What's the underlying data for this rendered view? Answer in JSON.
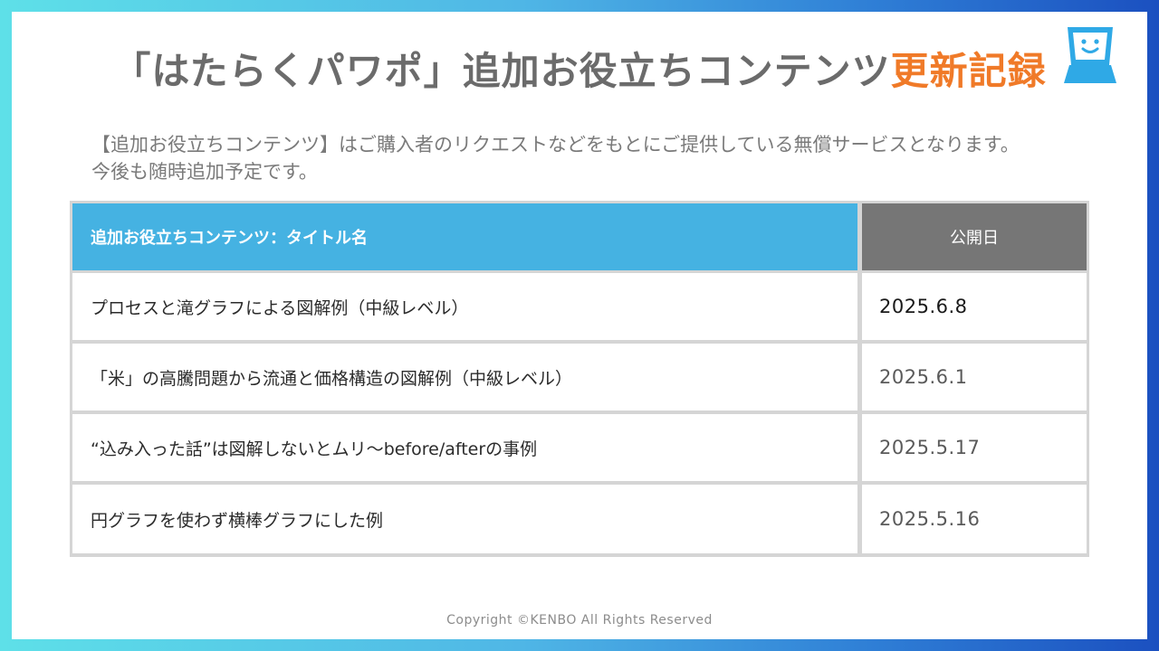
{
  "title": {
    "main": "「はたらくパワポ」追加お役立ちコンテンツ",
    "accent": "更新記録"
  },
  "logo_icon": "smiling-box-mascot-icon",
  "intro": {
    "line1": "【追加お役立ちコンテンツ】はご購入者のリクエストなどをもとにご提供している無償サービスとなります。",
    "line2": "今後も随時追加予定です。"
  },
  "table": {
    "header_title": "追加お役立ちコンテンツ：タイトル名",
    "header_date": "公開日",
    "rows": [
      {
        "title": "プロセスと滝グラフによる図解例（中級レベル）",
        "date": "2025.6.8"
      },
      {
        "title": "「米」の高騰問題から流通と価格構造の図解例（中級レベル）",
        "date": "2025.6.1"
      },
      {
        "title": "“込み入った話”は図解しないとムリ～before/afterの事例",
        "date": "2025.5.17"
      },
      {
        "title": "円グラフを使わず横棒グラフにした例",
        "date": "2025.5.16"
      }
    ]
  },
  "footer": "Copyright ©KENBO All Rights Reserved",
  "colors": {
    "title_gray": "#6b6b6b",
    "accent_orange": "#f07a28",
    "header_blue": "#45b2e2",
    "header_gray": "#767676",
    "logo_blue": "#2fa9e6"
  }
}
